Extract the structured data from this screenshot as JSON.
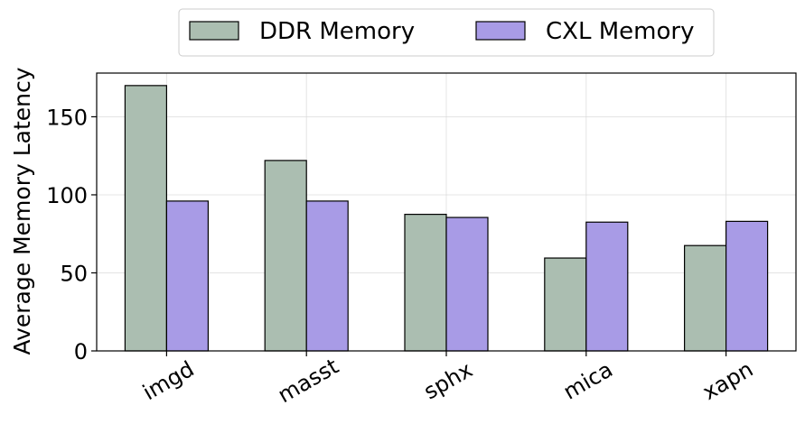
{
  "chart_data": {
    "type": "bar",
    "categories": [
      "imgd",
      "masst",
      "sphx",
      "mica",
      "xapn"
    ],
    "series": [
      {
        "name": "DDR Memory",
        "color": "#abbeb1",
        "values": [
          170,
          122,
          87.5,
          59.5,
          67.5
        ]
      },
      {
        "name": "CXL Memory",
        "color": "#a89be6",
        "values": [
          96,
          96,
          85.5,
          82.5,
          83
        ]
      }
    ],
    "title": "",
    "xlabel": "",
    "ylabel": "Average Memory Latency",
    "ylim": [
      0,
      178
    ],
    "yticks": [
      0,
      50,
      100,
      150
    ],
    "grid": true,
    "legend_position": "top-center"
  }
}
